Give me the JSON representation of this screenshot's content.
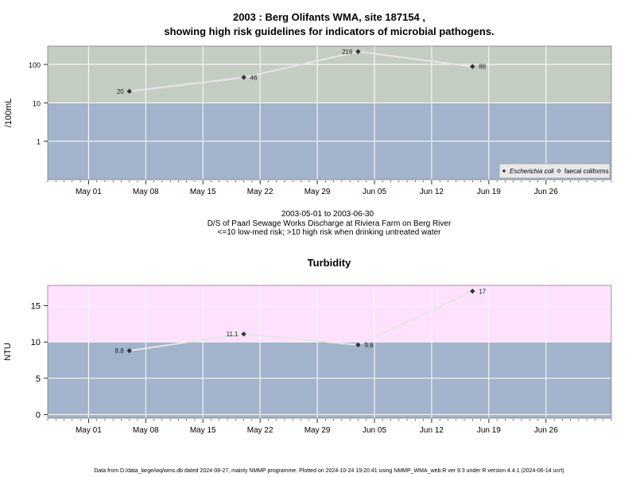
{
  "titles": {
    "line1": "2003 : Berg Olifants WMA, site 187154 ,",
    "line2": "showing high risk guidelines for indicators of microbial pathogens."
  },
  "subtitles": {
    "dates": "2003-05-01 to 2003-06-30",
    "site": "D/S of Paarl Sewage Works Discharge at Riviera Farm on Berg River",
    "risk": "<=10 low-med risk; >10 high risk when drinking untreated water"
  },
  "footer": "Data from D:/data_large/wq/wms.db dated 2024-08-27, mainly NMMP programme. Plotted on 2024-10-24 19:20:41 using NMMP_WMA_web.R ver 9.3 under R version 4.4.1 (2024-06-14 ucrt)",
  "colors": {
    "low_risk_band": "#a3b3cb",
    "ecoli_high_band": "#c4cdc2",
    "turbidity_high_band": "#fde1fd",
    "line": "#e6e6e6",
    "marker": "#333333",
    "grid": "#ffffff"
  },
  "chart_data": [
    {
      "type": "line",
      "title": "",
      "ylabel": "/100mL",
      "yscale": "log",
      "ylim": [
        0.1,
        300
      ],
      "yticks": [
        1,
        10,
        100
      ],
      "xlim": [
        "2003-04-26",
        "2003-07-04"
      ],
      "xticks": [
        "2003-05-01",
        "2003-05-08",
        "2003-05-15",
        "2003-05-22",
        "2003-05-29",
        "2003-06-05",
        "2003-06-12",
        "2003-06-19",
        "2003-06-26"
      ],
      "xtick_labels": [
        "May 01",
        "May 08",
        "May 15",
        "May 22",
        "May 29",
        "Jun 05",
        "Jun 12",
        "Jun 19",
        "Jun 26"
      ],
      "threshold": 10,
      "grid": true,
      "legend_position": "bottom-right",
      "legend": [
        "Escherichia coli",
        "faecal coliforms"
      ],
      "series": [
        {
          "name": "Escherichia coli",
          "x": [
            "2003-05-06",
            "2003-05-20",
            "2003-06-03",
            "2003-06-17"
          ],
          "y": [
            20,
            46,
            216,
            88
          ],
          "labels": [
            "20",
            "46",
            "216",
            "88"
          ]
        }
      ]
    },
    {
      "type": "line",
      "title": "Turbidity",
      "ylabel": "NTU",
      "yscale": "linear",
      "ylim": [
        -0.5,
        17.8
      ],
      "yticks": [
        0,
        5,
        10,
        15
      ],
      "xlim": [
        "2003-04-26",
        "2003-07-04"
      ],
      "xticks": [
        "2003-05-01",
        "2003-05-08",
        "2003-05-15",
        "2003-05-22",
        "2003-05-29",
        "2003-06-05",
        "2003-06-12",
        "2003-06-19",
        "2003-06-26"
      ],
      "xtick_labels": [
        "May 01",
        "May 08",
        "May 15",
        "May 22",
        "May 29",
        "Jun 05",
        "Jun 12",
        "Jun 19",
        "Jun 26"
      ],
      "threshold": 10,
      "grid": true,
      "series": [
        {
          "name": "",
          "x": [
            "2003-05-06",
            "2003-05-20",
            "2003-06-03",
            "2003-06-17"
          ],
          "y": [
            8.8,
            11.1,
            9.6,
            17
          ],
          "labels": [
            "8.8",
            "11.1",
            "9.6",
            "17"
          ]
        }
      ]
    }
  ]
}
